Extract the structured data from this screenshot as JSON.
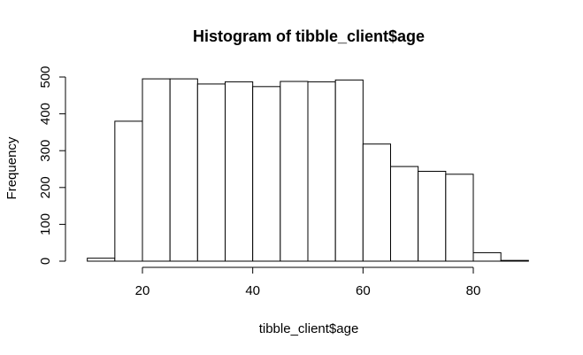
{
  "chart_data": {
    "type": "bar",
    "title": "Histogram of tibble_client$age",
    "xlabel": "tibble_client$age",
    "ylabel": "Frequency",
    "bins": [
      {
        "start": 10,
        "end": 15,
        "count": 8
      },
      {
        "start": 15,
        "end": 20,
        "count": 380
      },
      {
        "start": 20,
        "end": 25,
        "count": 495
      },
      {
        "start": 25,
        "end": 30,
        "count": 495
      },
      {
        "start": 30,
        "end": 35,
        "count": 481
      },
      {
        "start": 35,
        "end": 40,
        "count": 487
      },
      {
        "start": 40,
        "end": 45,
        "count": 474
      },
      {
        "start": 45,
        "end": 50,
        "count": 488
      },
      {
        "start": 50,
        "end": 55,
        "count": 487
      },
      {
        "start": 55,
        "end": 60,
        "count": 492
      },
      {
        "start": 60,
        "end": 65,
        "count": 318
      },
      {
        "start": 65,
        "end": 70,
        "count": 257
      },
      {
        "start": 70,
        "end": 75,
        "count": 244
      },
      {
        "start": 75,
        "end": 80,
        "count": 236
      },
      {
        "start": 80,
        "end": 85,
        "count": 23
      },
      {
        "start": 85,
        "end": 90,
        "count": 2
      }
    ],
    "xticks": [
      20,
      40,
      60,
      80
    ],
    "yticks": [
      0,
      100,
      200,
      300,
      400,
      500
    ],
    "xlim": [
      10,
      90
    ],
    "ylim": [
      0,
      500
    ],
    "grid": false,
    "colors": {
      "bar_fill": "#ffffff",
      "bar_stroke": "#000000"
    }
  }
}
